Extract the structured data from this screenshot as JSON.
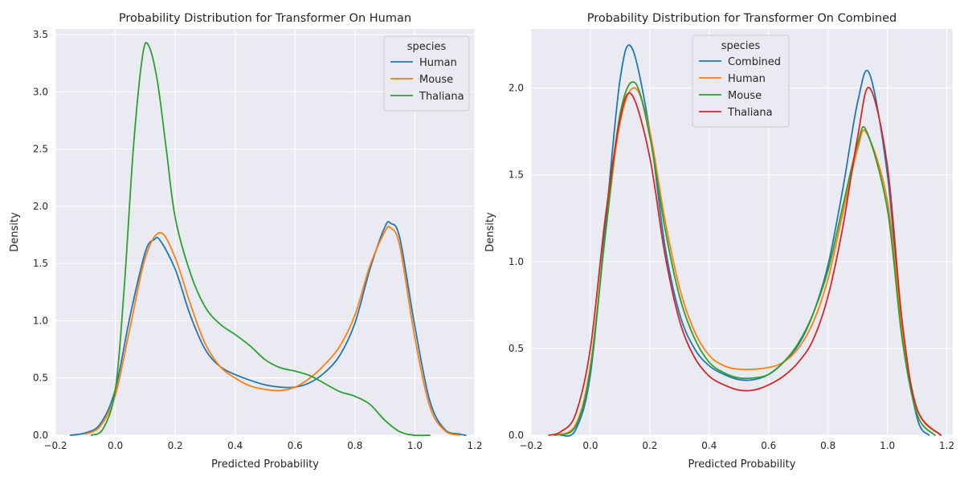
{
  "chart_data": [
    {
      "type": "line",
      "title": "Probability Distribution for Transformer On Human",
      "xlabel": "Predicted Probability",
      "ylabel": "Density",
      "xlim": [
        -0.2,
        1.2
      ],
      "ylim": [
        0,
        3.55
      ],
      "xticks": [
        -0.2,
        0.0,
        0.2,
        0.4,
        0.6,
        0.8,
        1.0,
        1.2
      ],
      "xtick_labels": [
        "−0.2",
        "0.0",
        "0.2",
        "0.4",
        "0.6",
        "0.8",
        "1.0",
        "1.2"
      ],
      "yticks": [
        0.0,
        0.5,
        1.0,
        1.5,
        2.0,
        2.5,
        3.0,
        3.5
      ],
      "ytick_labels": [
        "0.0",
        "0.5",
        "1.0",
        "1.5",
        "2.0",
        "2.5",
        "3.0",
        "3.5"
      ],
      "grid": true,
      "legend": {
        "title": "species",
        "position": "top-right"
      },
      "series": [
        {
          "name": "Human",
          "color": "#1f77b4",
          "x": [
            -0.15,
            -0.1,
            -0.05,
            0.0,
            0.05,
            0.1,
            0.13,
            0.15,
            0.2,
            0.25,
            0.3,
            0.35,
            0.4,
            0.45,
            0.5,
            0.55,
            0.6,
            0.65,
            0.7,
            0.75,
            0.8,
            0.85,
            0.9,
            0.92,
            0.95,
            1.0,
            1.05,
            1.1,
            1.15,
            1.17
          ],
          "y": [
            0.0,
            0.02,
            0.1,
            0.4,
            1.05,
            1.6,
            1.71,
            1.7,
            1.45,
            1.05,
            0.75,
            0.6,
            0.53,
            0.48,
            0.44,
            0.42,
            0.42,
            0.46,
            0.55,
            0.7,
            0.98,
            1.45,
            1.82,
            1.85,
            1.72,
            0.95,
            0.3,
            0.05,
            0.01,
            0.0
          ]
        },
        {
          "name": "Mouse",
          "color": "#ff7f0e",
          "x": [
            -0.1,
            -0.05,
            0.0,
            0.05,
            0.1,
            0.15,
            0.2,
            0.25,
            0.3,
            0.35,
            0.4,
            0.45,
            0.5,
            0.55,
            0.6,
            0.65,
            0.7,
            0.75,
            0.8,
            0.85,
            0.9,
            0.92,
            0.95,
            1.0,
            1.05,
            1.1,
            1.15
          ],
          "y": [
            0.01,
            0.08,
            0.35,
            0.95,
            1.55,
            1.77,
            1.55,
            1.15,
            0.8,
            0.6,
            0.5,
            0.43,
            0.4,
            0.39,
            0.42,
            0.5,
            0.62,
            0.78,
            1.05,
            1.48,
            1.78,
            1.81,
            1.65,
            0.85,
            0.25,
            0.04,
            0.0
          ]
        },
        {
          "name": "Thaliana",
          "color": "#2ca02c",
          "x": [
            -0.08,
            -0.04,
            0.0,
            0.03,
            0.06,
            0.09,
            0.11,
            0.14,
            0.17,
            0.2,
            0.25,
            0.3,
            0.35,
            0.4,
            0.45,
            0.5,
            0.55,
            0.6,
            0.65,
            0.7,
            0.75,
            0.8,
            0.85,
            0.9,
            0.95,
            1.0,
            1.05
          ],
          "y": [
            0.0,
            0.06,
            0.4,
            1.3,
            2.5,
            3.3,
            3.41,
            3.1,
            2.5,
            1.9,
            1.42,
            1.12,
            0.97,
            0.88,
            0.78,
            0.66,
            0.59,
            0.56,
            0.52,
            0.45,
            0.38,
            0.34,
            0.27,
            0.13,
            0.03,
            0.0,
            0.0
          ]
        }
      ]
    },
    {
      "type": "line",
      "title": "Probability Distribution for Transformer On Combined",
      "xlabel": "Predicted Probability",
      "ylabel": "Density",
      "xlim": [
        -0.2,
        1.22
      ],
      "ylim": [
        0,
        2.34
      ],
      "xticks": [
        -0.2,
        0.0,
        0.2,
        0.4,
        0.6,
        0.8,
        1.0,
        1.2
      ],
      "xtick_labels": [
        "−0.2",
        "0.0",
        "0.2",
        "0.4",
        "0.6",
        "0.8",
        "1.0",
        "1.2"
      ],
      "yticks": [
        0.0,
        0.5,
        1.0,
        1.5,
        2.0
      ],
      "ytick_labels": [
        "0.0",
        "0.5",
        "1.0",
        "1.5",
        "2.0"
      ],
      "grid": true,
      "legend": {
        "title": "species",
        "position": "top-center"
      },
      "series": [
        {
          "name": "Combined",
          "color": "#1f77b4",
          "x": [
            -0.1,
            -0.05,
            0.0,
            0.05,
            0.1,
            0.14,
            0.2,
            0.25,
            0.3,
            0.35,
            0.4,
            0.45,
            0.5,
            0.55,
            0.6,
            0.65,
            0.7,
            0.75,
            0.8,
            0.85,
            0.9,
            0.94,
            1.0,
            1.05,
            1.1,
            1.14
          ],
          "y": [
            0.0,
            0.03,
            0.35,
            1.2,
            2.05,
            2.23,
            1.75,
            1.1,
            0.7,
            0.5,
            0.4,
            0.35,
            0.32,
            0.32,
            0.35,
            0.42,
            0.52,
            0.7,
            0.98,
            1.42,
            1.92,
            2.08,
            1.5,
            0.6,
            0.1,
            0.0
          ]
        },
        {
          "name": "Human",
          "color": "#ff7f0e",
          "x": [
            -0.12,
            -0.05,
            0.0,
            0.05,
            0.1,
            0.15,
            0.2,
            0.25,
            0.3,
            0.35,
            0.4,
            0.45,
            0.5,
            0.55,
            0.6,
            0.65,
            0.7,
            0.75,
            0.8,
            0.85,
            0.9,
            0.93,
            1.0,
            1.05,
            1.1,
            1.18
          ],
          "y": [
            0.0,
            0.06,
            0.4,
            1.15,
            1.8,
            2.0,
            1.75,
            1.25,
            0.85,
            0.6,
            0.46,
            0.4,
            0.38,
            0.38,
            0.39,
            0.42,
            0.5,
            0.65,
            0.9,
            1.28,
            1.65,
            1.74,
            1.35,
            0.6,
            0.15,
            0.0
          ]
        },
        {
          "name": "Mouse",
          "color": "#2ca02c",
          "x": [
            -0.12,
            -0.05,
            0.0,
            0.05,
            0.1,
            0.15,
            0.2,
            0.25,
            0.3,
            0.35,
            0.4,
            0.45,
            0.5,
            0.55,
            0.6,
            0.65,
            0.7,
            0.75,
            0.8,
            0.85,
            0.9,
            0.93,
            1.0,
            1.05,
            1.1,
            1.16
          ],
          "y": [
            0.0,
            0.05,
            0.38,
            1.15,
            1.85,
            2.03,
            1.72,
            1.2,
            0.8,
            0.56,
            0.42,
            0.36,
            0.33,
            0.33,
            0.35,
            0.42,
            0.53,
            0.7,
            0.95,
            1.32,
            1.68,
            1.75,
            1.3,
            0.55,
            0.12,
            0.0
          ]
        },
        {
          "name": "Thaliana",
          "color": "#d62728",
          "x": [
            -0.14,
            -0.1,
            -0.05,
            0.0,
            0.05,
            0.1,
            0.14,
            0.2,
            0.25,
            0.3,
            0.35,
            0.4,
            0.45,
            0.5,
            0.55,
            0.6,
            0.65,
            0.7,
            0.75,
            0.8,
            0.85,
            0.9,
            0.94,
            1.0,
            1.05,
            1.1,
            1.18
          ],
          "y": [
            0.0,
            0.02,
            0.12,
            0.5,
            1.25,
            1.82,
            1.96,
            1.6,
            1.05,
            0.66,
            0.45,
            0.34,
            0.29,
            0.26,
            0.26,
            0.29,
            0.34,
            0.42,
            0.55,
            0.8,
            1.2,
            1.72,
            2.0,
            1.55,
            0.65,
            0.15,
            0.0
          ]
        }
      ]
    }
  ]
}
